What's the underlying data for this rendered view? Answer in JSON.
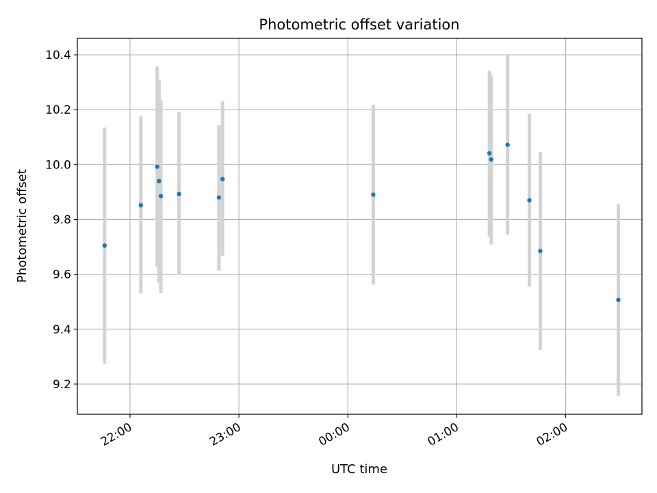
{
  "chart_data": {
    "type": "scatter",
    "title": "Photometric offset variation",
    "xlabel": "UTC time",
    "ylabel": "Photometric offset",
    "x_ticks": [
      "22:00",
      "23:00",
      "00:00",
      "01:00",
      "02:00"
    ],
    "y_ticks": [
      "9.2",
      "9.4",
      "9.6",
      "9.8",
      "10.0",
      "10.2",
      "10.4"
    ],
    "ylim": [
      9.09,
      10.46
    ],
    "xlim": [
      "21:31",
      "02:42"
    ],
    "grid": true,
    "error_bar_color": "#d3d3d3",
    "point_color": "#1f77b4",
    "points": [
      {
        "x": "21:46",
        "y": 9.705,
        "ylow": 9.275,
        "yhigh": 10.135
      },
      {
        "x": "22:06",
        "y": 9.852,
        "ylow": 9.53,
        "yhigh": 10.176
      },
      {
        "x": "22:15",
        "y": 9.992,
        "ylow": 9.627,
        "yhigh": 10.357
      },
      {
        "x": "22:16",
        "y": 9.94,
        "ylow": 9.568,
        "yhigh": 10.31
      },
      {
        "x": "22:17",
        "y": 9.885,
        "ylow": 9.532,
        "yhigh": 10.235
      },
      {
        "x": "22:27",
        "y": 9.893,
        "ylow": 9.598,
        "yhigh": 10.193
      },
      {
        "x": "22:49",
        "y": 9.88,
        "ylow": 9.613,
        "yhigh": 10.144
      },
      {
        "x": "22:51",
        "y": 9.947,
        "ylow": 9.667,
        "yhigh": 10.23
      },
      {
        "x": "00:14",
        "y": 9.89,
        "ylow": 9.563,
        "yhigh": 10.217
      },
      {
        "x": "01:18",
        "y": 10.041,
        "ylow": 9.737,
        "yhigh": 10.342
      },
      {
        "x": "01:19",
        "y": 10.019,
        "ylow": 9.709,
        "yhigh": 10.325
      },
      {
        "x": "01:28",
        "y": 10.072,
        "ylow": 9.745,
        "yhigh": 10.4
      },
      {
        "x": "01:40",
        "y": 9.87,
        "ylow": 9.555,
        "yhigh": 10.185
      },
      {
        "x": "01:46",
        "y": 9.685,
        "ylow": 9.325,
        "yhigh": 10.045
      },
      {
        "x": "02:29",
        "y": 9.507,
        "ylow": 9.157,
        "yhigh": 9.857
      }
    ]
  }
}
